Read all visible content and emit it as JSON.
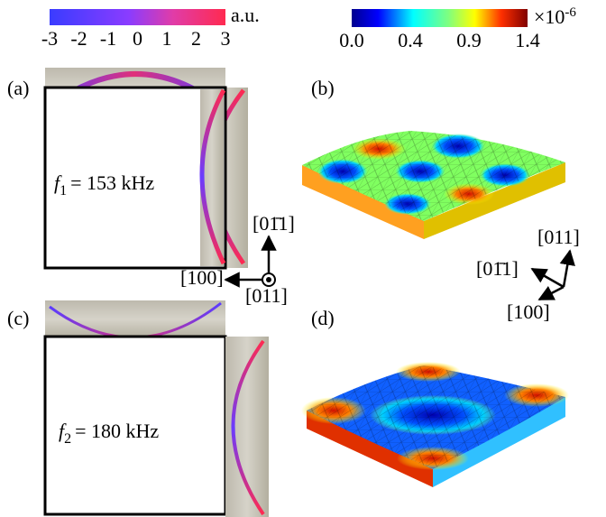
{
  "colorbar_phase": {
    "ticks": [
      "-3",
      "-2",
      "-1",
      "0",
      "1",
      "2",
      "3"
    ],
    "unit": "a.u."
  },
  "colorbar_amplitude": {
    "ticks": [
      "0.0",
      "0.4",
      "0.9",
      "1.4"
    ],
    "unit": "×10",
    "exponent": "-6"
  },
  "panels": [
    {
      "label": "(a)",
      "symbol": "f",
      "subscript": "1",
      "text": "= 153 kHz"
    },
    {
      "label": "(b)"
    },
    {
      "label": "(c)",
      "symbol": "f",
      "subscript": "2",
      "text": "= 180 kHz"
    },
    {
      "label": "(d)"
    }
  ],
  "axes_2d": {
    "up": "[01̄1]",
    "left": "[100]",
    "out": "[011]"
  },
  "axes_3d": {
    "up": "[011]",
    "left": "[01̄1]",
    "down": "[100]"
  }
}
